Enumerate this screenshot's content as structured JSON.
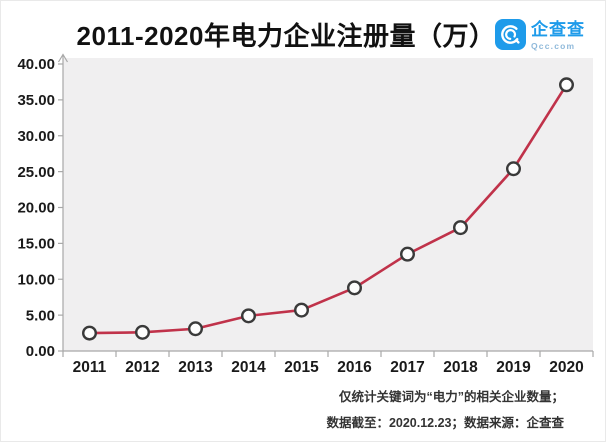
{
  "header": {
    "title": "2011-2020年电力企业注册量（万）",
    "logo": {
      "name": "企查查",
      "domain": "Qcc.com",
      "brand_color": "#1e9bea"
    }
  },
  "chart_data": {
    "type": "line",
    "title": "2011-2020年电力企业注册量（万）",
    "categories": [
      "2011",
      "2012",
      "2013",
      "2014",
      "2015",
      "2016",
      "2017",
      "2018",
      "2019",
      "2020"
    ],
    "series": [
      {
        "name": "电力企业注册量（万）",
        "values": [
          2.5,
          2.6,
          3.1,
          4.9,
          5.7,
          8.8,
          13.5,
          17.2,
          25.4,
          37.1
        ]
      }
    ],
    "xlabel": "",
    "ylabel": "",
    "ylim": [
      0,
      40
    ],
    "y_tick_step": 5,
    "y_tick_labels": [
      "0.00",
      "5.00",
      "10.00",
      "15.00",
      "20.00",
      "25.00",
      "30.00",
      "35.00",
      "40.00"
    ],
    "grid": false,
    "legend_position": "none",
    "line_color": "#c0324a",
    "marker_fill": "#fdfdfd",
    "marker_stroke": "#3a3a3a",
    "plot_bg": "#f0eff0",
    "axis_color": "#a8a8a8",
    "tick_label_color": "#1a1a1a"
  },
  "footer": {
    "note1": "仅统计关键词为“电力”的相关企业数量；",
    "note2": "数据截至：2020.12.23；数据来源：企查查"
  }
}
